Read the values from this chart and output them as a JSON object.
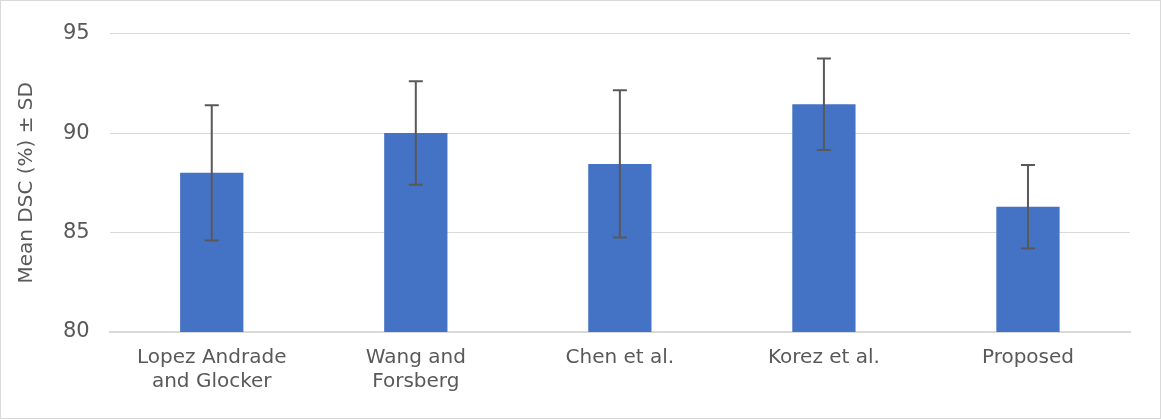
{
  "chart_data": {
    "type": "bar",
    "ylabel": "Mean DSC (%) ± SD",
    "categories": [
      "Lopez Andrade and Glocker",
      "Wang and Forsberg",
      "Chen et al.",
      "Korez et al.",
      "Proposed"
    ],
    "values": [
      88.0,
      90.0,
      88.45,
      91.45,
      86.3
    ],
    "errors": [
      3.4,
      2.6,
      3.7,
      2.3,
      2.1
    ],
    "color": "#4472c4",
    "ylim": [
      80,
      95
    ],
    "yticks": [
      80,
      85,
      90,
      95
    ],
    "grid": "y",
    "legend": false
  }
}
